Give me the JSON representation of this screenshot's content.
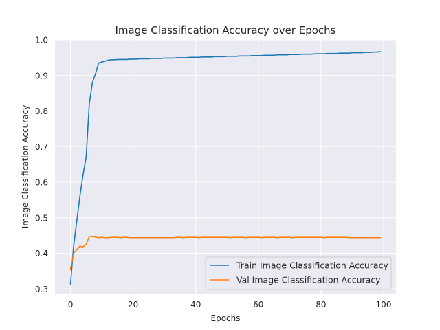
{
  "chart_data": {
    "type": "line",
    "title": "Image Classification Accuracy over Epochs",
    "xlabel": "Epochs",
    "ylabel": "Image Classification Accuracy",
    "xlim": [
      -4.95,
      103.95
    ],
    "ylim": [
      0.287,
      1.0
    ],
    "xticks": [
      0,
      20,
      40,
      60,
      80,
      100
    ],
    "yticks": [
      0.3,
      0.4,
      0.5,
      0.6,
      0.7,
      0.8,
      0.9,
      1.0
    ],
    "ytick_labels": [
      "0.3",
      "0.4",
      "0.5",
      "0.6",
      "0.7",
      "0.8",
      "0.9",
      "1.0"
    ],
    "grid": true,
    "legend_position": "lower-right",
    "series": [
      {
        "name": "Train Image Classification Accuracy",
        "color": "#1f77b4",
        "values": [
          0.314,
          0.42,
          0.49,
          0.56,
          0.62,
          0.67,
          0.82,
          0.88,
          0.905,
          0.935,
          0.938,
          0.94,
          0.943,
          0.944,
          0.944,
          0.945,
          0.945,
          0.945,
          0.945,
          0.946,
          0.946,
          0.946,
          0.947,
          0.947,
          0.947,
          0.947,
          0.948,
          0.948,
          0.948,
          0.948,
          0.949,
          0.949,
          0.949,
          0.949,
          0.95,
          0.95,
          0.95,
          0.95,
          0.951,
          0.951,
          0.951,
          0.951,
          0.952,
          0.952,
          0.952,
          0.952,
          0.953,
          0.953,
          0.953,
          0.953,
          0.954,
          0.954,
          0.954,
          0.954,
          0.955,
          0.955,
          0.955,
          0.955,
          0.956,
          0.956,
          0.956,
          0.956,
          0.957,
          0.957,
          0.957,
          0.957,
          0.958,
          0.958,
          0.958,
          0.958,
          0.959,
          0.959,
          0.959,
          0.959,
          0.96,
          0.96,
          0.96,
          0.96,
          0.961,
          0.961,
          0.961,
          0.961,
          0.962,
          0.962,
          0.962,
          0.962,
          0.963,
          0.963,
          0.963,
          0.963,
          0.964,
          0.964,
          0.964,
          0.964,
          0.965,
          0.965,
          0.965,
          0.966,
          0.966,
          0.967
        ]
      },
      {
        "name": "Val Image Classification Accuracy",
        "color": "#ff7f0e",
        "values": [
          0.356,
          0.4,
          0.41,
          0.42,
          0.418,
          0.425,
          0.448,
          0.447,
          0.446,
          0.444,
          0.445,
          0.444,
          0.444,
          0.445,
          0.445,
          0.445,
          0.444,
          0.445,
          0.445,
          0.444,
          0.444,
          0.444,
          0.444,
          0.444,
          0.444,
          0.444,
          0.444,
          0.444,
          0.444,
          0.444,
          0.444,
          0.444,
          0.444,
          0.444,
          0.445,
          0.445,
          0.444,
          0.445,
          0.445,
          0.445,
          0.445,
          0.444,
          0.445,
          0.445,
          0.445,
          0.445,
          0.445,
          0.445,
          0.445,
          0.445,
          0.445,
          0.444,
          0.445,
          0.445,
          0.445,
          0.445,
          0.444,
          0.445,
          0.445,
          0.445,
          0.445,
          0.444,
          0.445,
          0.445,
          0.445,
          0.445,
          0.444,
          0.445,
          0.445,
          0.445,
          0.445,
          0.444,
          0.445,
          0.445,
          0.445,
          0.445,
          0.445,
          0.445,
          0.445,
          0.445,
          0.445,
          0.444,
          0.445,
          0.445,
          0.445,
          0.445,
          0.445,
          0.445,
          0.445,
          0.444,
          0.444,
          0.444,
          0.444,
          0.444,
          0.444,
          0.444,
          0.444,
          0.444,
          0.444,
          0.444
        ]
      }
    ]
  }
}
